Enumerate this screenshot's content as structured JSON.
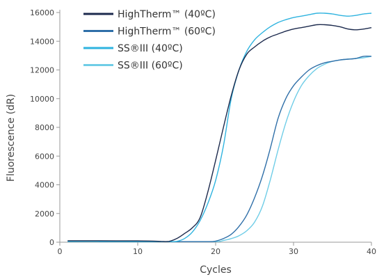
{
  "chart_data": {
    "type": "line",
    "title": "",
    "xlabel": "Cycles",
    "ylabel": "Fluorescence (dR)",
    "xlim": [
      0,
      40
    ],
    "ylim": [
      0,
      16000
    ],
    "x_ticks": [
      "0",
      "10",
      "20",
      "30",
      "40"
    ],
    "y_ticks": [
      "0",
      "2000",
      "4000",
      "6000",
      "8000",
      "10000",
      "12000",
      "14000",
      "16000"
    ],
    "grid": false,
    "legend_position": "top-left",
    "series": [
      {
        "name": "HighTherm™ (40ºC)",
        "color": "#1c2a4d",
        "points": [
          [
            1,
            100
          ],
          [
            5,
            100
          ],
          [
            10,
            90
          ],
          [
            12,
            80
          ],
          [
            13,
            60
          ],
          [
            14,
            60
          ],
          [
            15,
            250
          ],
          [
            16,
            600
          ],
          [
            17,
            1000
          ],
          [
            18,
            1700
          ],
          [
            19,
            3500
          ],
          [
            20,
            5700
          ],
          [
            21,
            8000
          ],
          [
            22,
            10200
          ],
          [
            23,
            12000
          ],
          [
            24,
            13100
          ],
          [
            25,
            13600
          ],
          [
            26,
            14000
          ],
          [
            27,
            14300
          ],
          [
            28,
            14500
          ],
          [
            29,
            14700
          ],
          [
            30,
            14850
          ],
          [
            31,
            14950
          ],
          [
            32,
            15050
          ],
          [
            33,
            15150
          ],
          [
            34,
            15150
          ],
          [
            35,
            15100
          ],
          [
            36,
            15000
          ],
          [
            37,
            14850
          ],
          [
            38,
            14800
          ],
          [
            39,
            14850
          ],
          [
            40,
            14950
          ]
        ]
      },
      {
        "name": "HighTherm™ (60ºC)",
        "color": "#2f6fa8",
        "points": [
          [
            5,
            50
          ],
          [
            10,
            40
          ],
          [
            15,
            40
          ],
          [
            19,
            40
          ],
          [
            20,
            80
          ],
          [
            21,
            250
          ],
          [
            22,
            550
          ],
          [
            23,
            1100
          ],
          [
            24,
            1900
          ],
          [
            25,
            3100
          ],
          [
            26,
            4600
          ],
          [
            27,
            6500
          ],
          [
            28,
            8600
          ],
          [
            29,
            10000
          ],
          [
            30,
            10900
          ],
          [
            31,
            11500
          ],
          [
            32,
            12000
          ],
          [
            33,
            12300
          ],
          [
            34,
            12500
          ],
          [
            35,
            12600
          ],
          [
            36,
            12700
          ],
          [
            37,
            12750
          ],
          [
            38,
            12800
          ],
          [
            39,
            12950
          ],
          [
            40,
            12950
          ]
        ]
      },
      {
        "name": "SS®III (40ºC)",
        "color": "#2eb3df",
        "points": [
          [
            1,
            50
          ],
          [
            5,
            50
          ],
          [
            10,
            40
          ],
          [
            14,
            40
          ],
          [
            15,
            60
          ],
          [
            16,
            250
          ],
          [
            17,
            700
          ],
          [
            18,
            1500
          ],
          [
            19,
            2700
          ],
          [
            20,
            4300
          ],
          [
            21,
            6700
          ],
          [
            22,
            10000
          ],
          [
            23,
            12000
          ],
          [
            24,
            13300
          ],
          [
            25,
            14100
          ],
          [
            26,
            14600
          ],
          [
            27,
            15000
          ],
          [
            28,
            15300
          ],
          [
            29,
            15500
          ],
          [
            30,
            15650
          ],
          [
            31,
            15750
          ],
          [
            32,
            15850
          ],
          [
            33,
            15950
          ],
          [
            34,
            15950
          ],
          [
            35,
            15900
          ],
          [
            36,
            15800
          ],
          [
            37,
            15750
          ],
          [
            38,
            15800
          ],
          [
            39,
            15900
          ],
          [
            40,
            15950
          ]
        ]
      },
      {
        "name": "SS®III (60ºC)",
        "color": "#6fcde7",
        "points": [
          [
            5,
            50
          ],
          [
            10,
            40
          ],
          [
            15,
            40
          ],
          [
            20,
            40
          ],
          [
            21,
            120
          ],
          [
            22,
            250
          ],
          [
            23,
            450
          ],
          [
            24,
            800
          ],
          [
            25,
            1400
          ],
          [
            26,
            2500
          ],
          [
            27,
            4300
          ],
          [
            28,
            6400
          ],
          [
            29,
            8300
          ],
          [
            30,
            9800
          ],
          [
            31,
            10900
          ],
          [
            32,
            11600
          ],
          [
            33,
            12100
          ],
          [
            34,
            12400
          ],
          [
            35,
            12600
          ],
          [
            36,
            12700
          ],
          [
            37,
            12750
          ],
          [
            38,
            12800
          ],
          [
            39,
            12850
          ],
          [
            40,
            12950
          ]
        ]
      }
    ]
  }
}
